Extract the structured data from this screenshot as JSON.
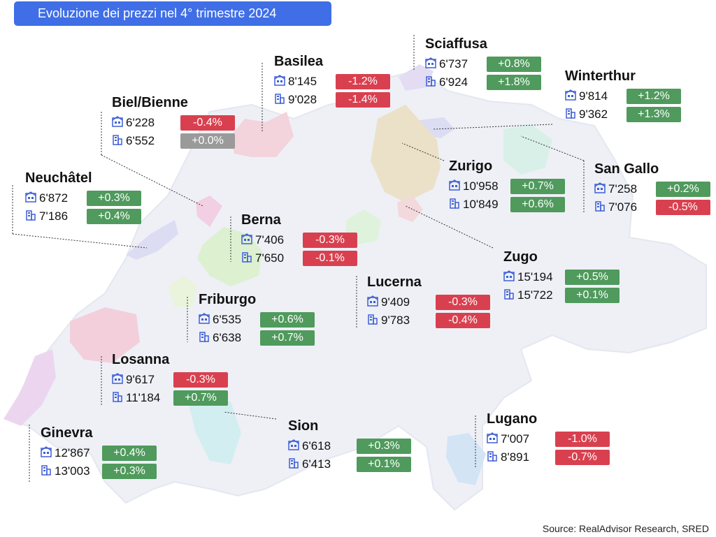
{
  "title": "Evoluzione dei prezzi nel 4° trimestre 2024",
  "source": "Source: RealAdvisor Research, SRED",
  "legend_icons": {
    "apartment": "apartment-icon",
    "house": "house-icon"
  },
  "colors": {
    "positive": "#4f9a5c",
    "negative": "#d9404f",
    "neutral": "#9a9a9a",
    "title_bg": "#3f6ee6",
    "icon": "#3f5fd6",
    "country": "#eef0f6"
  },
  "cities": [
    {
      "id": "basilea",
      "name": "Basilea",
      "rows": [
        {
          "icon": "apartment",
          "price": "8'145",
          "change": "-1.2%",
          "sign": "neg"
        },
        {
          "icon": "house",
          "price": "9'028",
          "change": "-1.4%",
          "sign": "neg"
        }
      ]
    },
    {
      "id": "sciaffusa",
      "name": "Sciaffusa",
      "rows": [
        {
          "icon": "apartment",
          "price": "6'737",
          "change": "+0.8%",
          "sign": "pos"
        },
        {
          "icon": "house",
          "price": "6'924",
          "change": "+1.8%",
          "sign": "pos"
        }
      ]
    },
    {
      "id": "winterthur",
      "name": "Winterthur",
      "rows": [
        {
          "icon": "apartment",
          "price": "9'814",
          "change": "+1.2%",
          "sign": "pos"
        },
        {
          "icon": "house",
          "price": "9'362",
          "change": "+1.3%",
          "sign": "pos"
        }
      ]
    },
    {
      "id": "biel",
      "name": "Biel/Bienne",
      "rows": [
        {
          "icon": "apartment",
          "price": "6'228",
          "change": "-0.4%",
          "sign": "neg"
        },
        {
          "icon": "house",
          "price": "6'552",
          "change": "+0.0%",
          "sign": "zero"
        }
      ]
    },
    {
      "id": "zurigo",
      "name": "Zurigo",
      "rows": [
        {
          "icon": "apartment",
          "price": "10'958",
          "change": "+0.7%",
          "sign": "pos"
        },
        {
          "icon": "house",
          "price": "10'849",
          "change": "+0.6%",
          "sign": "pos"
        }
      ]
    },
    {
      "id": "sangallo",
      "name": "San Gallo",
      "rows": [
        {
          "icon": "apartment",
          "price": "7'258",
          "change": "+0.2%",
          "sign": "pos"
        },
        {
          "icon": "house",
          "price": "7'076",
          "change": "-0.5%",
          "sign": "neg"
        }
      ]
    },
    {
      "id": "neuchatel",
      "name": "Neuchâtel",
      "rows": [
        {
          "icon": "apartment",
          "price": "6'872",
          "change": "+0.3%",
          "sign": "pos"
        },
        {
          "icon": "house",
          "price": "7'186",
          "change": "+0.4%",
          "sign": "pos"
        }
      ]
    },
    {
      "id": "berna",
      "name": "Berna",
      "rows": [
        {
          "icon": "apartment",
          "price": "7'406",
          "change": "-0.3%",
          "sign": "neg"
        },
        {
          "icon": "house",
          "price": "7'650",
          "change": "-0.1%",
          "sign": "neg"
        }
      ]
    },
    {
      "id": "zugo",
      "name": "Zugo",
      "rows": [
        {
          "icon": "apartment",
          "price": "15'194",
          "change": "+0.5%",
          "sign": "pos"
        },
        {
          "icon": "house",
          "price": "15'722",
          "change": "+0.1%",
          "sign": "pos"
        }
      ]
    },
    {
      "id": "lucerna",
      "name": "Lucerna",
      "rows": [
        {
          "icon": "apartment",
          "price": "9'409",
          "change": "-0.3%",
          "sign": "neg"
        },
        {
          "icon": "house",
          "price": "9'783",
          "change": "-0.4%",
          "sign": "neg"
        }
      ]
    },
    {
      "id": "friburgo",
      "name": "Friburgo",
      "rows": [
        {
          "icon": "apartment",
          "price": "6'535",
          "change": "+0.6%",
          "sign": "pos"
        },
        {
          "icon": "house",
          "price": "6'638",
          "change": "+0.7%",
          "sign": "pos"
        }
      ]
    },
    {
      "id": "losanna",
      "name": "Losanna",
      "rows": [
        {
          "icon": "apartment",
          "price": "9'617",
          "change": "-0.3%",
          "sign": "neg"
        },
        {
          "icon": "house",
          "price": "11'184",
          "change": "+0.7%",
          "sign": "pos"
        }
      ]
    },
    {
      "id": "lugano",
      "name": "Lugano",
      "rows": [
        {
          "icon": "apartment",
          "price": "7'007",
          "change": "-1.0%",
          "sign": "neg"
        },
        {
          "icon": "house",
          "price": "8'891",
          "change": "-0.7%",
          "sign": "neg"
        }
      ]
    },
    {
      "id": "sion",
      "name": "Sion",
      "rows": [
        {
          "icon": "apartment",
          "price": "6'618",
          "change": "+0.3%",
          "sign": "pos"
        },
        {
          "icon": "house",
          "price": "6'413",
          "change": "+0.1%",
          "sign": "pos"
        }
      ]
    },
    {
      "id": "ginevra",
      "name": "Ginevra",
      "rows": [
        {
          "icon": "apartment",
          "price": "12'867",
          "change": "+0.4%",
          "sign": "pos"
        },
        {
          "icon": "house",
          "price": "13'003",
          "change": "+0.3%",
          "sign": "pos"
        }
      ]
    }
  ]
}
